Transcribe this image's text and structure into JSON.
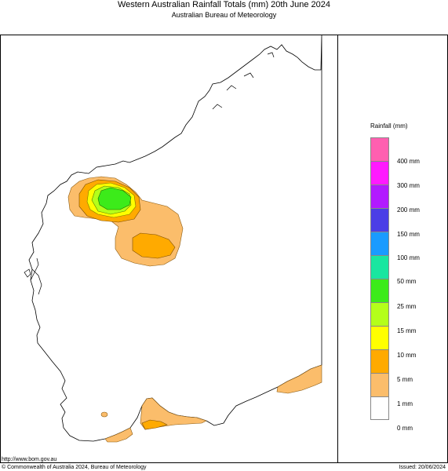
{
  "header": {
    "title": "Western Australian Rainfall Totals (mm) 20th June 2024",
    "subtitle": "Australian Bureau of Meteorology"
  },
  "legend": {
    "title": "Rainfall (mm)",
    "swatches": [
      {
        "color": "#ff5fb0"
      },
      {
        "color": "#ff1aff"
      },
      {
        "color": "#b21aff"
      },
      {
        "color": "#4b3ee6"
      },
      {
        "color": "#1a9bff"
      },
      {
        "color": "#19e6a0"
      },
      {
        "color": "#3ceb1a"
      },
      {
        "color": "#b4ff1a"
      },
      {
        "color": "#ffff00"
      },
      {
        "color": "#ffaa00"
      },
      {
        "color": "#fbbd6b"
      },
      {
        "color": "#ffffff"
      }
    ],
    "labels": [
      "400 mm",
      "300 mm",
      "200 mm",
      "150 mm",
      "100 mm",
      "50 mm",
      "25 mm",
      "15 mm",
      "10 mm",
      "5 mm",
      "1 mm",
      "0 mm"
    ]
  },
  "footer": {
    "url": "http://www.bom.gov.au",
    "copyright": "© Commonwealth of Australia 2024, Bureau of Meteorology",
    "issued": "Issued: 20/06/2024"
  }
}
